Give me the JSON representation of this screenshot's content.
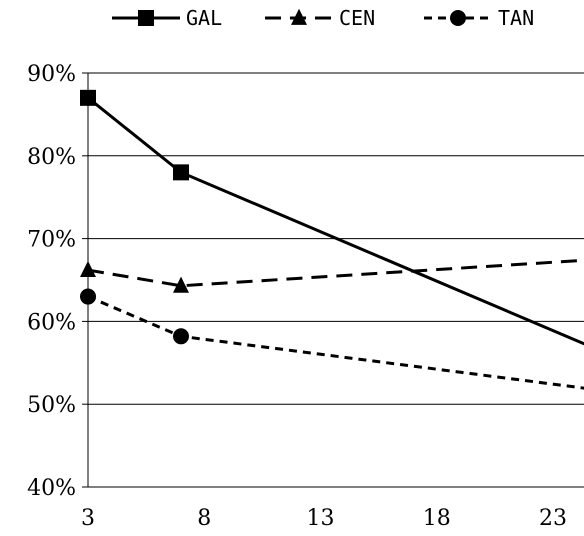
{
  "chart_data": {
    "type": "line",
    "title": "",
    "xlabel": "",
    "ylabel": "",
    "x": [
      3,
      7,
      25
    ],
    "xlim": [
      3,
      25
    ],
    "ylim": [
      40,
      90
    ],
    "xticks": [
      3,
      8,
      13,
      18,
      23
    ],
    "yticks": [
      40,
      50,
      60,
      70,
      80,
      90
    ],
    "x_tick_labels": [
      "3",
      "8",
      "13",
      "18",
      "23"
    ],
    "y_tick_labels": [
      "40%",
      "50%",
      "60%",
      "70%",
      "80%",
      "90%"
    ],
    "grid": "horizontal",
    "legend_position": "top",
    "series": [
      {
        "name": "GAL",
        "values": [
          87,
          78,
          56.5
        ],
        "line_style": "solid",
        "marker": "square",
        "color": "#000000"
      },
      {
        "name": "CEN",
        "values": [
          66.2,
          64.3,
          67.5
        ],
        "line_style": "dashed",
        "marker": "triangle",
        "color": "#000000"
      },
      {
        "name": "TAN",
        "values": [
          63,
          58.2,
          51.7
        ],
        "line_style": "dotted",
        "marker": "circle",
        "color": "#000000"
      }
    ]
  }
}
